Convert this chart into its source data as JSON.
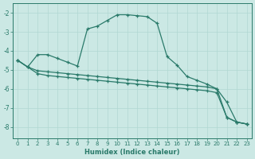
{
  "xlabel": "Humidex (Indice chaleur)",
  "background_color": "#cbe8e4",
  "grid_color": "#b0d8d2",
  "line_color": "#2a7a6a",
  "xlim": [
    -0.5,
    23.5
  ],
  "ylim": [
    -8.6,
    -1.5
  ],
  "yticks": [
    -8,
    -7,
    -6,
    -5,
    -4,
    -3,
    -2
  ],
  "xticks": [
    0,
    1,
    2,
    3,
    4,
    5,
    6,
    7,
    8,
    9,
    10,
    11,
    12,
    13,
    14,
    15,
    16,
    17,
    18,
    19,
    20,
    21,
    22,
    23
  ],
  "line1_x": [
    0,
    1,
    2,
    3,
    4,
    5,
    6,
    7,
    8,
    9,
    10,
    11,
    12,
    13,
    14,
    15,
    16,
    17,
    18,
    19,
    20,
    21,
    22,
    23
  ],
  "line1_y": [
    -4.5,
    -4.85,
    -4.2,
    -4.2,
    -4.4,
    -4.6,
    -4.8,
    -2.85,
    -2.7,
    -2.4,
    -2.1,
    -2.1,
    -2.15,
    -2.2,
    -2.55,
    -4.3,
    -4.75,
    -5.35,
    -5.55,
    -5.75,
    -6.0,
    -6.7,
    -7.75,
    -7.85
  ],
  "line2_x": [
    0,
    1,
    2,
    3,
    4,
    5,
    6,
    7,
    8,
    9,
    10,
    11,
    12,
    13,
    14,
    15,
    16,
    17,
    18,
    19,
    20,
    21,
    22,
    23
  ],
  "line2_y": [
    -4.5,
    -4.85,
    -5.05,
    -5.1,
    -5.15,
    -5.2,
    -5.25,
    -5.3,
    -5.35,
    -5.4,
    -5.45,
    -5.5,
    -5.55,
    -5.6,
    -5.65,
    -5.7,
    -5.75,
    -5.8,
    -5.85,
    -5.9,
    -6.0,
    -7.5,
    -7.75,
    -7.85
  ],
  "line3_x": [
    0,
    1,
    2,
    3,
    4,
    5,
    6,
    7,
    8,
    9,
    10,
    11,
    12,
    13,
    14,
    15,
    16,
    17,
    18,
    19,
    20,
    21,
    22,
    23
  ],
  "line3_y": [
    -4.5,
    -4.85,
    -5.2,
    -5.3,
    -5.35,
    -5.4,
    -5.45,
    -5.5,
    -5.55,
    -5.6,
    -5.65,
    -5.7,
    -5.75,
    -5.8,
    -5.85,
    -5.9,
    -5.95,
    -6.0,
    -6.05,
    -6.1,
    -6.2,
    -7.5,
    -7.75,
    -7.85
  ]
}
